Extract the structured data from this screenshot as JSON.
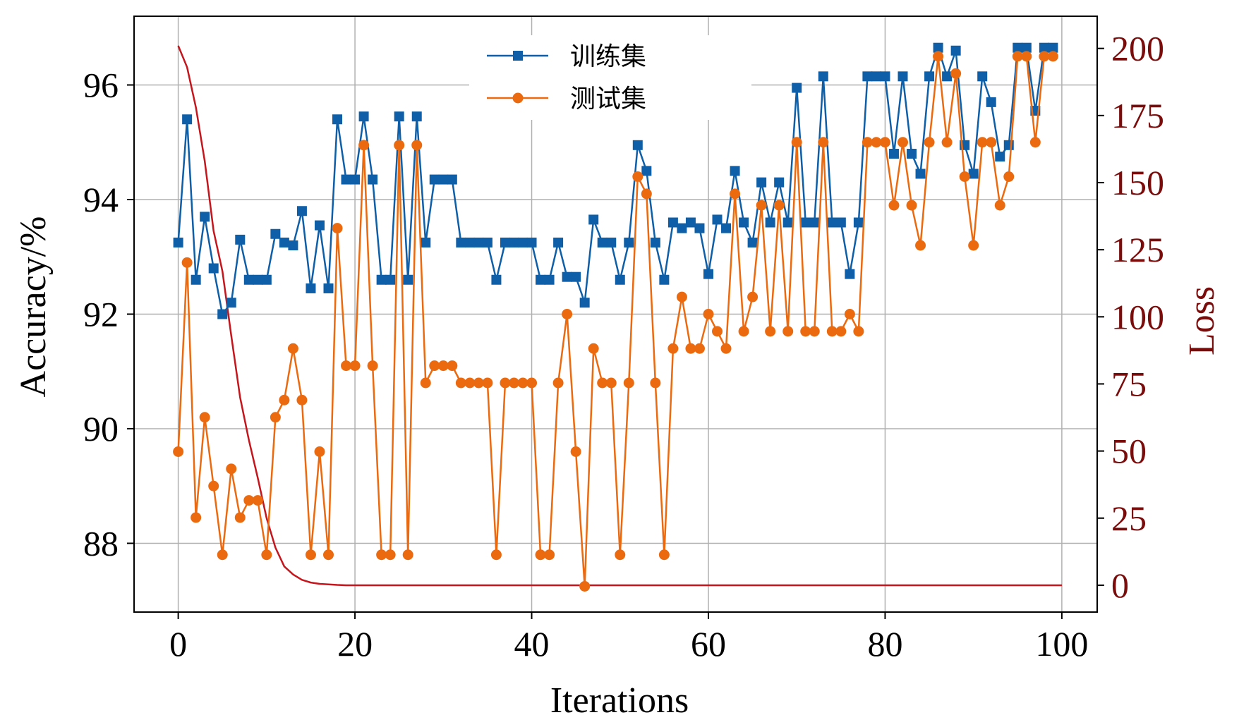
{
  "chart_data": {
    "type": "line",
    "title": "",
    "xlabel": "Iterations",
    "ylabel_left": "Accuracy/%",
    "ylabel_right": "Loss",
    "xlim": [
      -5,
      104
    ],
    "ylim_left": [
      86.8,
      97.2
    ],
    "ylim_right": [
      -10,
      212
    ],
    "x_ticks": [
      0,
      20,
      40,
      60,
      80,
      100
    ],
    "y_ticks_left": [
      88,
      90,
      92,
      94,
      96
    ],
    "y_ticks_right": [
      0,
      25,
      50,
      75,
      100,
      125,
      150,
      175,
      200
    ],
    "grid": true,
    "legend": {
      "placement": "top-center",
      "entries": [
        "训练集",
        "测试集"
      ]
    },
    "colors": {
      "train": "#0e5fa8",
      "test": "#eb6a10",
      "loss": "#c4161c",
      "right_axis_text": "#7a0c0c",
      "grid": "#b0b0b0"
    },
    "series": [
      {
        "name": "训练集",
        "axis": "left",
        "marker": "square",
        "values": [
          93.25,
          95.4,
          92.6,
          93.7,
          92.8,
          92.0,
          92.2,
          93.3,
          92.6,
          92.6,
          92.6,
          93.4,
          93.25,
          93.2,
          93.8,
          92.45,
          93.55,
          92.45,
          95.4,
          94.35,
          94.35,
          95.45,
          94.35,
          92.6,
          92.6,
          95.45,
          92.6,
          95.45,
          93.25,
          94.35,
          94.35,
          94.35,
          93.25,
          93.25,
          93.25,
          93.25,
          92.6,
          93.25,
          93.25,
          93.25,
          93.25,
          92.6,
          92.6,
          93.25,
          92.65,
          92.65,
          92.2,
          93.65,
          93.25,
          93.25,
          92.6,
          93.25,
          94.95,
          94.5,
          93.25,
          92.6,
          93.6,
          93.5,
          93.6,
          93.5,
          92.7,
          93.65,
          93.5,
          94.5,
          93.6,
          93.25,
          94.3,
          93.6,
          94.3,
          93.6,
          95.95,
          93.6,
          93.6,
          96.15,
          93.6,
          93.6,
          92.7,
          93.6,
          96.15,
          96.15,
          96.15,
          94.8,
          96.15,
          94.8,
          94.45,
          96.15,
          96.65,
          96.15,
          96.6,
          94.95,
          94.45,
          96.15,
          95.7,
          94.75,
          94.95,
          96.65,
          96.65,
          95.55,
          96.65,
          96.65
        ]
      },
      {
        "name": "测试集",
        "axis": "left",
        "marker": "circle",
        "values": [
          89.6,
          92.9,
          88.45,
          90.2,
          89.0,
          87.8,
          89.3,
          88.45,
          88.75,
          88.75,
          87.8,
          90.2,
          90.5,
          91.4,
          90.5,
          87.8,
          89.6,
          87.8,
          93.5,
          91.1,
          91.1,
          94.95,
          91.1,
          87.8,
          87.8,
          94.95,
          87.8,
          94.95,
          90.8,
          91.1,
          91.1,
          91.1,
          90.8,
          90.8,
          90.8,
          90.8,
          87.8,
          90.8,
          90.8,
          90.8,
          90.8,
          87.8,
          87.8,
          90.8,
          92.0,
          89.6,
          87.25,
          91.4,
          90.8,
          90.8,
          87.8,
          90.8,
          94.4,
          94.1,
          90.8,
          87.8,
          91.4,
          92.3,
          91.4,
          91.4,
          92.0,
          91.7,
          91.4,
          94.1,
          91.7,
          92.3,
          93.9,
          91.7,
          93.9,
          91.7,
          95.0,
          91.7,
          91.7,
          95.0,
          91.7,
          91.7,
          92.0,
          91.7,
          95.0,
          95.0,
          95.0,
          93.9,
          95.0,
          93.9,
          93.2,
          95.0,
          96.5,
          95.0,
          96.2,
          94.4,
          93.2,
          95.0,
          95.0,
          93.9,
          94.4,
          96.5,
          96.5,
          95.0,
          96.5,
          96.5
        ]
      },
      {
        "name": "Loss",
        "axis": "right",
        "marker": "none",
        "values": [
          201,
          193,
          178,
          158,
          132,
          117,
          93,
          70,
          54,
          40,
          25,
          14,
          7,
          4,
          2,
          1,
          0.5,
          0.3,
          0.1,
          0,
          0,
          0,
          0,
          0,
          0,
          0,
          0,
          0,
          0,
          0,
          0,
          0,
          0,
          0,
          0,
          0,
          0,
          0,
          0,
          0,
          0,
          0,
          0,
          0,
          0,
          0,
          0,
          0,
          0,
          0,
          0,
          0,
          0,
          0,
          0,
          0,
          0,
          0,
          0,
          0,
          0,
          0,
          0,
          0,
          0,
          0,
          0,
          0,
          0,
          0,
          0,
          0,
          0,
          0,
          0,
          0,
          0,
          0,
          0,
          0,
          0,
          0,
          0,
          0,
          0,
          0,
          0,
          0,
          0,
          0,
          0,
          0,
          0,
          0,
          0,
          0,
          0,
          0,
          0,
          0,
          0
        ]
      }
    ]
  }
}
